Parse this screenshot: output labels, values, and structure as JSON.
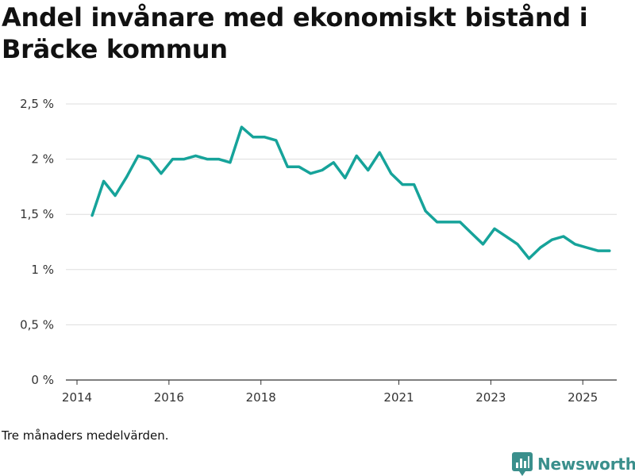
{
  "title": "Andel invånare med ekonomiskt bistånd i Bräcke kommun",
  "note": "Tre månaders medelvärden.",
  "brand": {
    "name": "Newsworthy",
    "icon": "newsworthy-logo-icon",
    "color": "#3a8f8c"
  },
  "colors": {
    "line": "#16a39a",
    "grid": "#dddddd",
    "axis": "#333333"
  },
  "chart_data": {
    "type": "line",
    "title": "Andel invånare med ekonomiskt bistånd i Bräcke kommun",
    "xlabel": "",
    "ylabel": "",
    "ylim": [
      0,
      2.5
    ],
    "xlim": [
      2014.0,
      2025.98
    ],
    "y_ticks": [
      0,
      0.5,
      1,
      1.5,
      2,
      2.5
    ],
    "y_tick_labels": [
      "0 %",
      "0,5 %",
      "1 %",
      "1,5 %",
      "2 %",
      "2,5 %"
    ],
    "x_ticks": [
      2014,
      2016,
      2018,
      2021,
      2023,
      2025
    ],
    "x_tick_labels": [
      "2014",
      "2016",
      "2018",
      "2021",
      "2023",
      "2025"
    ],
    "grid": true,
    "series": [
      {
        "name": "Andel invånare",
        "x": [
          2014.33,
          2014.58,
          2014.83,
          2015.08,
          2015.33,
          2015.58,
          2015.83,
          2016.08,
          2016.33,
          2016.58,
          2016.83,
          2017.08,
          2017.33,
          2017.58,
          2017.83,
          2018.08,
          2018.33,
          2018.58,
          2018.83,
          2019.08,
          2019.33,
          2019.58,
          2019.83,
          2020.08,
          2020.33,
          2020.58,
          2020.83,
          2021.08,
          2021.33,
          2021.58,
          2021.83,
          2022.08,
          2022.33,
          2022.58,
          2022.83,
          2023.08,
          2023.33,
          2023.58,
          2023.83,
          2024.08,
          2024.33,
          2024.58,
          2024.83,
          2025.08,
          2025.33,
          2025.58
        ],
        "values": [
          1.49,
          1.8,
          1.67,
          1.84,
          2.03,
          2.0,
          1.87,
          2.0,
          2.0,
          2.03,
          2.0,
          2.0,
          1.97,
          2.29,
          2.2,
          2.2,
          2.17,
          1.93,
          1.93,
          1.87,
          1.9,
          1.97,
          1.83,
          2.03,
          1.9,
          2.06,
          1.87,
          1.77,
          1.77,
          1.53,
          1.43,
          1.43,
          1.43,
          1.33,
          1.23,
          1.37,
          1.3,
          1.23,
          1.1,
          1.2,
          1.27,
          1.3,
          1.23,
          1.2,
          1.17,
          1.17
        ]
      }
    ]
  }
}
